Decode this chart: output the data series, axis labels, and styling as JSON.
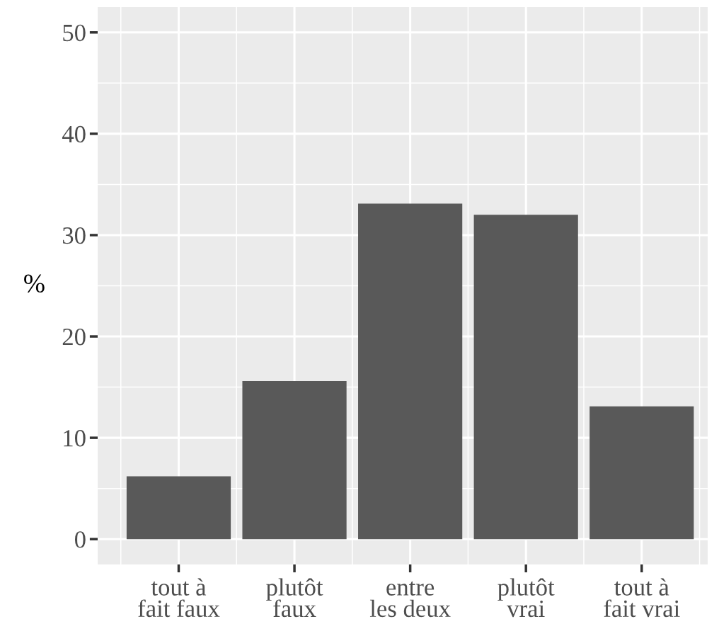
{
  "chart_data": {
    "type": "bar",
    "ylabel": "%",
    "categories": [
      "tout à\nfait faux",
      "plutôt\nfaux",
      "entre\nles deux",
      "plutôt\nvrai",
      "tout à\nfait vrai"
    ],
    "values": [
      6.2,
      15.6,
      33.1,
      32.0,
      13.1
    ],
    "color": "#595959",
    "ylim": [
      -2.5,
      52.5
    ],
    "yticks": [
      0,
      10,
      20,
      30,
      40,
      50
    ],
    "grid": true
  }
}
